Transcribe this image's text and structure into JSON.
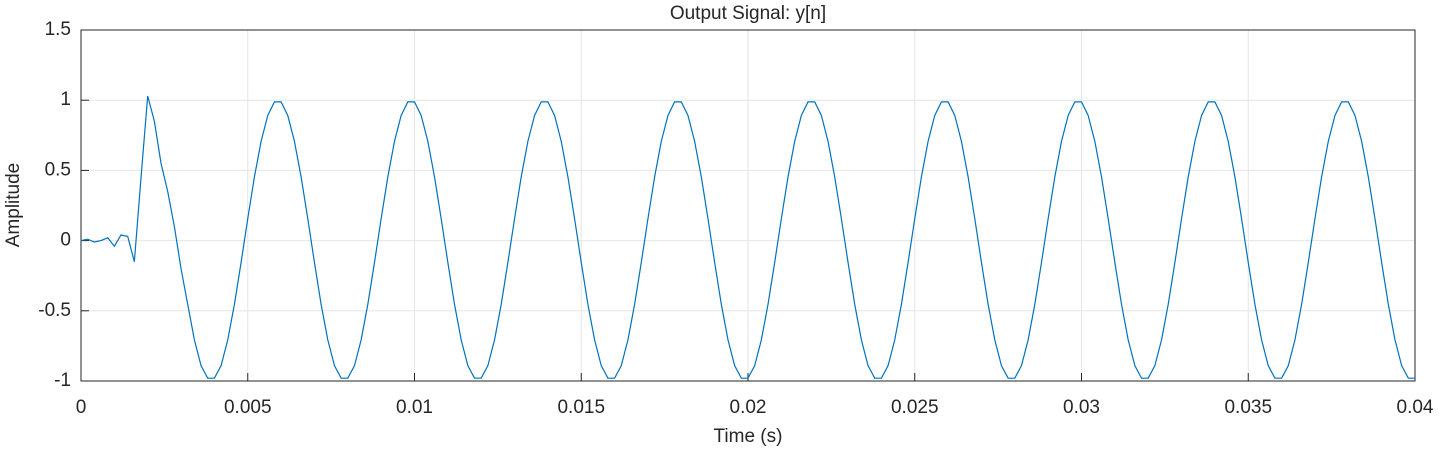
{
  "chart_data": {
    "type": "line",
    "title": "Output Signal: y[n]",
    "xlabel": "Time (s)",
    "ylabel": "Amplitude",
    "color": "#0072bd",
    "grid": true,
    "xlim": [
      0,
      0.04
    ],
    "ylim": [
      -1,
      1.5
    ],
    "xticks": [
      0,
      0.005,
      0.01,
      0.015,
      0.02,
      0.025,
      0.03,
      0.035,
      0.04
    ],
    "yticks": [
      -1,
      -0.5,
      0,
      0.5,
      1,
      1.5
    ],
    "x": [
      0,
      0.0002,
      0.0004,
      0.0006,
      0.0008,
      0.001,
      0.0012,
      0.0014,
      0.0016,
      0.0018,
      0.002,
      0.0022,
      0.0024,
      0.0026,
      0.0028,
      0.003,
      0.0032,
      0.0034,
      0.0036,
      0.0038,
      0.004,
      0.0042,
      0.0044,
      0.0046,
      0.0048,
      0.005,
      0.0052,
      0.0054,
      0.0056,
      0.0058,
      0.006,
      0.0062,
      0.0064,
      0.0066,
      0.0068,
      0.007,
      0.0072,
      0.0074,
      0.0076,
      0.0078,
      0.008,
      0.0082,
      0.0084,
      0.0086,
      0.0088,
      0.009,
      0.0092,
      0.0094,
      0.0096,
      0.0098,
      0.01,
      0.0102,
      0.0104,
      0.0106,
      0.0108,
      0.011,
      0.0112,
      0.0114,
      0.0116,
      0.0118,
      0.012,
      0.0122,
      0.0124,
      0.0126,
      0.0128,
      0.013,
      0.0132,
      0.0134,
      0.0136,
      0.0138,
      0.014,
      0.0142,
      0.0144,
      0.0146,
      0.0148,
      0.015,
      0.0152,
      0.0154,
      0.0156,
      0.0158,
      0.016,
      0.0162,
      0.0164,
      0.0166,
      0.0168,
      0.017,
      0.0172,
      0.0174,
      0.0176,
      0.0178,
      0.018,
      0.0182,
      0.0184,
      0.0186,
      0.0188,
      0.019,
      0.0192,
      0.0194,
      0.0196,
      0.0198,
      0.02,
      0.0202,
      0.0204,
      0.0206,
      0.0208,
      0.021,
      0.0212,
      0.0214,
      0.0216,
      0.0218,
      0.022,
      0.0222,
      0.0224,
      0.0226,
      0.0228,
      0.023,
      0.0232,
      0.0234,
      0.0236,
      0.0238,
      0.024,
      0.0242,
      0.0244,
      0.0246,
      0.0248,
      0.025,
      0.0252,
      0.0254,
      0.0256,
      0.0258,
      0.026,
      0.0262,
      0.0264,
      0.0266,
      0.0268,
      0.027,
      0.0272,
      0.0274,
      0.0276,
      0.0278,
      0.028,
      0.0282,
      0.0284,
      0.0286,
      0.0288,
      0.029,
      0.0292,
      0.0294,
      0.0296,
      0.0298,
      0.03,
      0.0302,
      0.0304,
      0.0306,
      0.0308,
      0.031,
      0.0312,
      0.0314,
      0.0316,
      0.0318,
      0.032,
      0.0322,
      0.0324,
      0.0326,
      0.0328,
      0.033,
      0.0332,
      0.0334,
      0.0336,
      0.0338,
      0.034,
      0.0342,
      0.0344,
      0.0346,
      0.0348,
      0.035,
      0.0352,
      0.0354,
      0.0356,
      0.0358,
      0.036,
      0.0362,
      0.0364,
      0.0366,
      0.0368,
      0.037,
      0.0372,
      0.0374,
      0.0376,
      0.0378,
      0.038,
      0.0382,
      0.0384,
      0.0386,
      0.0388,
      0.039,
      0.0392,
      0.0394,
      0.0396,
      0.0398,
      0.04
    ],
    "values": [
      0,
      0.01,
      -0.01,
      0,
      0.02,
      -0.04,
      0.04,
      0.03,
      -0.15,
      0.45,
      1.03,
      0.85,
      0.55,
      0.35,
      0.1,
      -0.2,
      -0.454,
      -0.707,
      -0.891,
      -0.98,
      -0.98,
      -0.891,
      -0.707,
      -0.454,
      -0.156,
      0.156,
      0.454,
      0.707,
      0.891,
      0.988,
      0.988,
      0.891,
      0.707,
      0.454,
      0.156,
      -0.156,
      -0.454,
      -0.707,
      -0.891,
      -0.98,
      -0.98,
      -0.891,
      -0.707,
      -0.454,
      -0.156,
      0.156,
      0.454,
      0.707,
      0.891,
      0.988,
      0.988,
      0.891,
      0.707,
      0.454,
      0.156,
      -0.156,
      -0.454,
      -0.707,
      -0.891,
      -0.98,
      -0.98,
      -0.891,
      -0.707,
      -0.454,
      -0.156,
      0.156,
      0.454,
      0.707,
      0.891,
      0.988,
      0.988,
      0.891,
      0.707,
      0.454,
      0.156,
      -0.156,
      -0.454,
      -0.707,
      -0.891,
      -0.98,
      -0.98,
      -0.891,
      -0.707,
      -0.454,
      -0.156,
      0.156,
      0.454,
      0.707,
      0.891,
      0.988,
      0.988,
      0.891,
      0.707,
      0.454,
      0.156,
      -0.156,
      -0.454,
      -0.707,
      -0.891,
      -0.98,
      -0.98,
      -0.891,
      -0.707,
      -0.454,
      -0.156,
      0.156,
      0.454,
      0.707,
      0.891,
      0.988,
      0.988,
      0.891,
      0.707,
      0.454,
      0.156,
      -0.156,
      -0.454,
      -0.707,
      -0.891,
      -0.98,
      -0.98,
      -0.891,
      -0.707,
      -0.454,
      -0.156,
      0.156,
      0.454,
      0.707,
      0.891,
      0.988,
      0.988,
      0.891,
      0.707,
      0.454,
      0.156,
      -0.156,
      -0.454,
      -0.707,
      -0.891,
      -0.98,
      -0.98,
      -0.891,
      -0.707,
      -0.454,
      -0.156,
      0.156,
      0.454,
      0.707,
      0.891,
      0.988,
      0.988,
      0.891,
      0.707,
      0.454,
      0.156,
      -0.156,
      -0.454,
      -0.707,
      -0.891,
      -0.98,
      -0.98,
      -0.891,
      -0.707,
      -0.454,
      -0.156,
      0.156,
      0.454,
      0.707,
      0.891,
      0.988,
      0.988,
      0.891,
      0.707,
      0.454,
      0.156,
      -0.156,
      -0.454,
      -0.707,
      -0.891,
      -0.98,
      -0.98,
      -0.891,
      -0.707,
      -0.454,
      -0.156,
      0.156,
      0.454,
      0.707,
      0.891,
      0.988,
      0.988,
      0.891,
      0.707,
      0.454,
      0.156,
      -0.156,
      -0.454,
      -0.707,
      -0.891,
      -0.98,
      -0.98
    ]
  }
}
